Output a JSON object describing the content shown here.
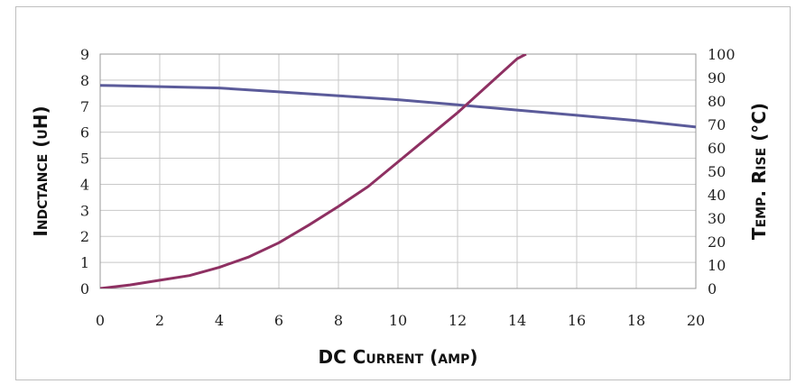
{
  "chart_data": {
    "type": "line",
    "xlabel": "DC Current (amp)",
    "ylabel_left": "Indctance (uH)",
    "ylabel_right": "Temp. Rise (°C)",
    "xlim": [
      0,
      20
    ],
    "ylim_left": [
      0,
      9
    ],
    "ylim_right": [
      0,
      100
    ],
    "x_ticks": [
      0,
      2,
      4,
      6,
      8,
      10,
      12,
      14,
      16,
      18,
      20
    ],
    "y_left_ticks": [
      0,
      1,
      2,
      3,
      4,
      5,
      6,
      7,
      8,
      9
    ],
    "y_right_ticks": [
      0,
      10,
      20,
      30,
      40,
      50,
      60,
      70,
      80,
      90,
      100
    ],
    "grid": true,
    "legend": "none",
    "series": [
      {
        "axis": "left",
        "color": "#5b5b9a",
        "points": [
          [
            0,
            7.8
          ],
          [
            2,
            7.75
          ],
          [
            4,
            7.7
          ],
          [
            6,
            7.55
          ],
          [
            8,
            7.4
          ],
          [
            10,
            7.25
          ],
          [
            12,
            7.05
          ],
          [
            14,
            6.85
          ],
          [
            16,
            6.65
          ],
          [
            18,
            6.45
          ],
          [
            20,
            6.2
          ]
        ]
      },
      {
        "axis": "right",
        "color": "#8e3062",
        "points": [
          [
            0,
            0
          ],
          [
            1,
            1.5
          ],
          [
            2,
            3.5
          ],
          [
            3,
            5.5
          ],
          [
            4,
            9
          ],
          [
            5,
            13.5
          ],
          [
            6,
            19.5
          ],
          [
            7,
            27
          ],
          [
            8,
            35
          ],
          [
            9,
            43.5
          ],
          [
            10,
            54
          ],
          [
            11,
            64.5
          ],
          [
            12,
            75
          ],
          [
            13,
            86.5
          ],
          [
            14,
            98
          ],
          [
            14.3,
            100
          ]
        ]
      }
    ]
  }
}
